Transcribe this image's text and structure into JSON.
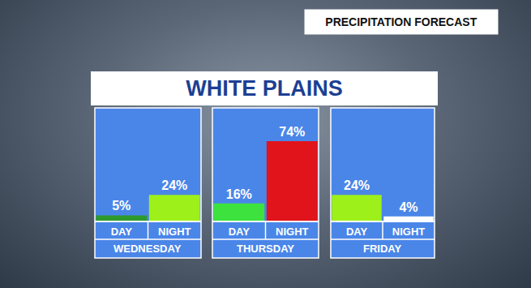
{
  "chart_data": {
    "type": "bar",
    "header": "PRECIPITATION FORECAST",
    "title": "WHITE PLAINS",
    "categories": [
      "DAY",
      "NIGHT"
    ],
    "series": [
      {
        "name": "WEDNESDAY",
        "values": [
          5,
          24
        ],
        "value_labels": [
          "5%",
          "24%"
        ],
        "colors": [
          "#2e9a2e",
          "#9ef01a"
        ]
      },
      {
        "name": "THURSDAY",
        "values": [
          16,
          74
        ],
        "value_labels": [
          "16%",
          "74%"
        ],
        "colors": [
          "#3ee23e",
          "#e0141a"
        ]
      },
      {
        "name": "FRIDAY",
        "values": [
          24,
          4
        ],
        "value_labels": [
          "24%",
          "4%"
        ],
        "colors": [
          "#9ef01a",
          "#ffffff"
        ]
      }
    ],
    "ylim": [
      0,
      105
    ],
    "data_labels": true,
    "tick_labels": "x",
    "grid": false
  }
}
